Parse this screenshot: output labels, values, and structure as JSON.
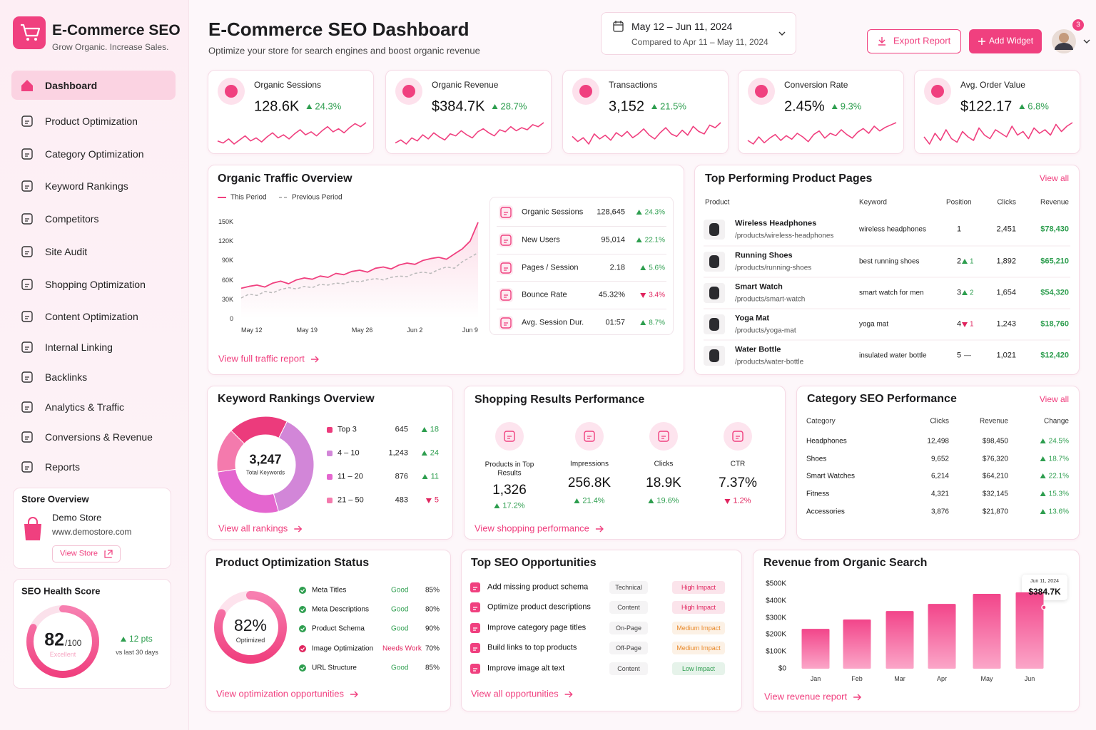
{
  "sidebar": {
    "brand": {
      "title": "E-Commerce SEO",
      "tagline": "Grow Organic. Increase Sales."
    },
    "nav": [
      {
        "label": "Dashboard",
        "active": true
      },
      {
        "label": "Product Optimization"
      },
      {
        "label": "Category Optimization"
      },
      {
        "label": "Keyword Rankings"
      },
      {
        "label": "Competitors"
      },
      {
        "label": "Site Audit"
      },
      {
        "label": "Shopping Optimization"
      },
      {
        "label": "Content Optimization"
      },
      {
        "label": "Internal Linking"
      },
      {
        "label": "Backlinks"
      },
      {
        "label": "Analytics & Traffic"
      },
      {
        "label": "Conversions & Revenue"
      },
      {
        "label": "Reports"
      }
    ],
    "store": {
      "heading": "Store Overview",
      "name": "Demo Store",
      "url": "www.demostore.com",
      "button": "View Store"
    },
    "health": {
      "heading": "SEO Health Score",
      "score": 82,
      "max": {
        "value": 100,
        "label": "/100"
      },
      "status": "Excellent",
      "change": "12 pts",
      "direction": "up",
      "note": "vs last 30 days"
    }
  },
  "header": {
    "title": "E-Commerce SEO Dashboard",
    "subtitle": "Optimize your store for search engines and boost organic revenue",
    "date_range": "May 12 – Jun 11, 2024",
    "comparison": "Compared to Apr 11 – May 11, 2024",
    "export": "Export Report",
    "add_widget": "Add Widget",
    "notifications": 3
  },
  "kpis": [
    {
      "label": "Organic Sessions",
      "value": "128.6K",
      "change": "24.3%",
      "direction": "up",
      "trend": [
        30,
        28,
        32,
        27,
        31,
        35,
        30,
        33,
        29,
        34,
        38,
        33,
        36,
        32,
        37,
        41,
        36,
        39,
        35,
        40,
        44,
        39,
        42,
        38,
        43,
        47,
        44,
        48
      ]
    },
    {
      "label": "Organic Revenue",
      "value": "$384.7K",
      "change": "28.7%",
      "direction": "up",
      "trend": [
        28,
        31,
        27,
        33,
        30,
        36,
        32,
        38,
        34,
        31,
        37,
        35,
        40,
        36,
        33,
        39,
        42,
        38,
        35,
        41,
        39,
        44,
        40,
        43,
        41,
        46,
        44,
        48
      ]
    },
    {
      "label": "Transactions",
      "value": "3,152",
      "change": "21.5%",
      "direction": "up",
      "trend": [
        36,
        32,
        35,
        30,
        38,
        34,
        37,
        33,
        39,
        36,
        40,
        35,
        38,
        42,
        37,
        34,
        39,
        43,
        38,
        36,
        41,
        37,
        44,
        40,
        38,
        45,
        43,
        47
      ]
    },
    {
      "label": "Conversion Rate",
      "value": "2.45%",
      "change": "9.3%",
      "direction": "up",
      "trend": [
        33,
        30,
        36,
        31,
        35,
        38,
        33,
        37,
        34,
        39,
        36,
        32,
        38,
        41,
        35,
        39,
        37,
        42,
        38,
        35,
        40,
        43,
        39,
        45,
        41,
        44,
        46,
        48
      ]
    },
    {
      "label": "Avg. Order Value",
      "value": "$122.17",
      "change": "6.8%",
      "direction": "up",
      "trend": [
        37,
        33,
        39,
        35,
        41,
        36,
        34,
        40,
        37,
        35,
        42,
        38,
        36,
        41,
        39,
        37,
        43,
        38,
        40,
        36,
        42,
        39,
        41,
        38,
        44,
        40,
        43,
        45
      ]
    }
  ],
  "traffic": {
    "title": "Organic Traffic Overview",
    "chart": {
      "type": "line",
      "categories": [
        "May 12",
        null,
        null,
        null,
        null,
        null,
        null,
        "May 19",
        null,
        null,
        null,
        null,
        null,
        null,
        "May 26",
        null,
        null,
        null,
        null,
        null,
        null,
        "Jun 2",
        null,
        null,
        null,
        null,
        null,
        null,
        "Jun 9",
        null,
        null
      ],
      "series": [
        {
          "name": "This Period",
          "color": "#f0407f",
          "values": [
            47000,
            50000,
            52000,
            49000,
            55000,
            58000,
            54000,
            60000,
            63000,
            61000,
            66000,
            64000,
            70000,
            68000,
            73000,
            75000,
            72000,
            78000,
            80000,
            77000,
            83000,
            86000,
            84000,
            90000,
            93000,
            95000,
            92000,
            100000,
            108000,
            120000,
            149000
          ]
        },
        {
          "name": "Previous Period",
          "color": "#b9b9b9",
          "dashed": true,
          "values": [
            32000,
            38000,
            36000,
            42000,
            40000,
            45000,
            48000,
            46000,
            50000,
            48000,
            53000,
            52000,
            55000,
            54000,
            58000,
            57000,
            60000,
            62000,
            60000,
            64000,
            66000,
            65000,
            70000,
            72000,
            70000,
            76000,
            80000,
            78000,
            88000,
            95000,
            102000
          ]
        }
      ],
      "ylim": [
        0,
        150000
      ],
      "yticks": [
        0,
        {
          "value": 30000,
          "label": "30K"
        },
        {
          "value": 60000,
          "label": "60K"
        },
        {
          "value": 90000,
          "label": "90K"
        },
        {
          "value": 120000,
          "label": "120K"
        },
        {
          "value": 150000,
          "label": "150K"
        }
      ]
    },
    "metrics": [
      {
        "label": "Organic Sessions",
        "value": "128,645",
        "change": "24.3%",
        "direction": "up"
      },
      {
        "label": "New Users",
        "value": "95,014",
        "change": "22.1%",
        "direction": "up"
      },
      {
        "label": "Pages / Session",
        "value": "2.18",
        "change": "5.6%",
        "direction": "up"
      },
      {
        "label": "Bounce Rate",
        "value": "45.32%",
        "change": "3.4%",
        "direction": "down"
      },
      {
        "label": "Avg. Session Dur.",
        "value": "01:57",
        "change": "8.7%",
        "direction": "up"
      }
    ],
    "link": "View full traffic report"
  },
  "products": {
    "title": "Top Performing Product Pages",
    "view_all": "View all",
    "columns": [
      "Product",
      "Keyword",
      "Position",
      "Clicks",
      "Revenue"
    ],
    "rows": [
      {
        "name": "Wireless Headphones",
        "path": "/products/wireless-headphones",
        "keyword": "wireless headphones",
        "position": 1,
        "clicks": "2,451",
        "revenue": "$78,430"
      },
      {
        "name": "Running Shoes",
        "path": "/products/running-shoes",
        "keyword": "best running shoes",
        "position": 2,
        "move": "1",
        "direction": "up",
        "clicks": "1,892",
        "revenue": "$65,210"
      },
      {
        "name": "Smart Watch",
        "path": "/products/smart-watch",
        "keyword": "smart watch for men",
        "position": 3,
        "move": "2",
        "direction": "up",
        "clicks": "1,654",
        "revenue": "$54,320"
      },
      {
        "name": "Yoga Mat",
        "path": "/products/yoga-mat",
        "keyword": "yoga mat",
        "position": 4,
        "move": "1",
        "direction": "down",
        "clicks": "1,243",
        "revenue": "$18,760"
      },
      {
        "name": "Water Bottle",
        "path": "/products/water-bottle",
        "keyword": "insulated water bottle",
        "position": 5,
        "move": "—",
        "clicks": "1,021",
        "revenue": "$12,420"
      }
    ]
  },
  "keywords": {
    "title": "Keyword Rankings Overview",
    "total": "3,247",
    "total_label": "Total Keywords",
    "chart": {
      "type": "pie",
      "categories": [
        "Top 3",
        "4 – 10",
        "11 – 20",
        "21 – 50"
      ],
      "values": [
        645,
        1243,
        876,
        483
      ],
      "value_labels": [
        "645",
        "1,243",
        "876",
        "483"
      ],
      "colors": [
        "#ec3b7c",
        "#d286d8",
        "#e466cf",
        "#f47aad"
      ]
    },
    "changes": [
      {
        "change": "18",
        "direction": "up"
      },
      {
        "change": "24",
        "direction": "up"
      },
      {
        "change": "11",
        "direction": "up"
      },
      {
        "change": "5",
        "direction": "down"
      }
    ],
    "link": "View all rankings"
  },
  "shopping": {
    "title": "Shopping Results Performance",
    "items": [
      {
        "label": "Products in Top Results",
        "value": "1,326",
        "change": "17.2%",
        "direction": "up"
      },
      {
        "label": "Impressions",
        "value": "256.8K",
        "change": "21.4%",
        "direction": "up"
      },
      {
        "label": "Clicks",
        "value": "18.9K",
        "change": "19.6%",
        "direction": "up"
      },
      {
        "label": "CTR",
        "value": "7.37%",
        "change": "1.2%",
        "direction": "down"
      }
    ],
    "link": "View shopping performance"
  },
  "categories": {
    "title": "Category SEO Performance",
    "view_all": "View all",
    "columns": [
      "Category",
      "Clicks",
      "Revenue",
      "Change"
    ],
    "rows": [
      {
        "name": "Headphones",
        "clicks": "12,498",
        "revenue": "$98,450",
        "change": "24.5%",
        "direction": "up"
      },
      {
        "name": "Shoes",
        "clicks": "9,652",
        "revenue": "$76,320",
        "change": "18.7%",
        "direction": "up"
      },
      {
        "name": "Smart Watches",
        "clicks": "6,214",
        "revenue": "$64,210",
        "change": "22.1%",
        "direction": "up"
      },
      {
        "name": "Fitness",
        "clicks": "4,321",
        "revenue": "$32,145",
        "change": "15.3%",
        "direction": "up"
      },
      {
        "name": "Accessories",
        "clicks": "3,876",
        "revenue": "$21,870",
        "change": "13.6%",
        "direction": "up"
      }
    ]
  },
  "optimization": {
    "title": "Product Optimization Status",
    "score": {
      "value": 82,
      "label": "82%"
    },
    "score_label": "Optimized",
    "items": [
      {
        "label": "Meta Titles",
        "status": "Good",
        "value": "85%",
        "color": "#2e9e4f"
      },
      {
        "label": "Meta Descriptions",
        "status": "Good",
        "value": "80%",
        "color": "#2e9e4f"
      },
      {
        "label": "Product Schema",
        "status": "Good",
        "value": "90%",
        "color": "#2e9e4f"
      },
      {
        "label": "Image Optimization",
        "status": "Needs Work",
        "value": "70%",
        "color": "#e0245e"
      },
      {
        "label": "URL Structure",
        "status": "Good",
        "value": "85%",
        "color": "#2e9e4f"
      }
    ],
    "link": "View optimization opportunities"
  },
  "opportunities": {
    "title": "Top SEO Opportunities",
    "rows": [
      {
        "task": "Add missing product schema",
        "category": "Technical",
        "impact": "High Impact",
        "color": "#e0245e"
      },
      {
        "task": "Optimize product descriptions",
        "category": "Content",
        "impact": "High Impact",
        "color": "#e0245e"
      },
      {
        "task": "Improve category page titles",
        "category": "On-Page",
        "impact": "Medium Impact",
        "color": "#e8892a"
      },
      {
        "task": "Build links to top products",
        "category": "Off-Page",
        "impact": "Medium Impact",
        "color": "#e8892a"
      },
      {
        "task": "Improve image alt text",
        "category": "Content",
        "impact": "Low Impact",
        "color": "#2e9e4f"
      }
    ],
    "link": "View all opportunities"
  },
  "revenue": {
    "title": "Revenue from Organic Search",
    "chart": {
      "type": "bar",
      "categories": [
        "Jan",
        "Feb",
        "Mar",
        "Apr",
        "May",
        "Jun"
      ],
      "values": [
        235000,
        290000,
        340000,
        382000,
        441000,
        450000
      ],
      "color": "#f0407f",
      "ylim": [
        0,
        500000
      ],
      "yticks": [
        {
          "value": 0,
          "label": "$0"
        },
        {
          "value": 100000,
          "label": "$100K"
        },
        {
          "value": 200000,
          "label": "$200K"
        },
        {
          "value": 300000,
          "label": "$300K"
        },
        {
          "value": 400000,
          "label": "$400K"
        },
        {
          "value": 500000,
          "label": "$500K"
        }
      ]
    },
    "tooltip": {
      "date": "Jun 11, 2024",
      "value": "$384.7K"
    },
    "link": "View revenue report"
  }
}
